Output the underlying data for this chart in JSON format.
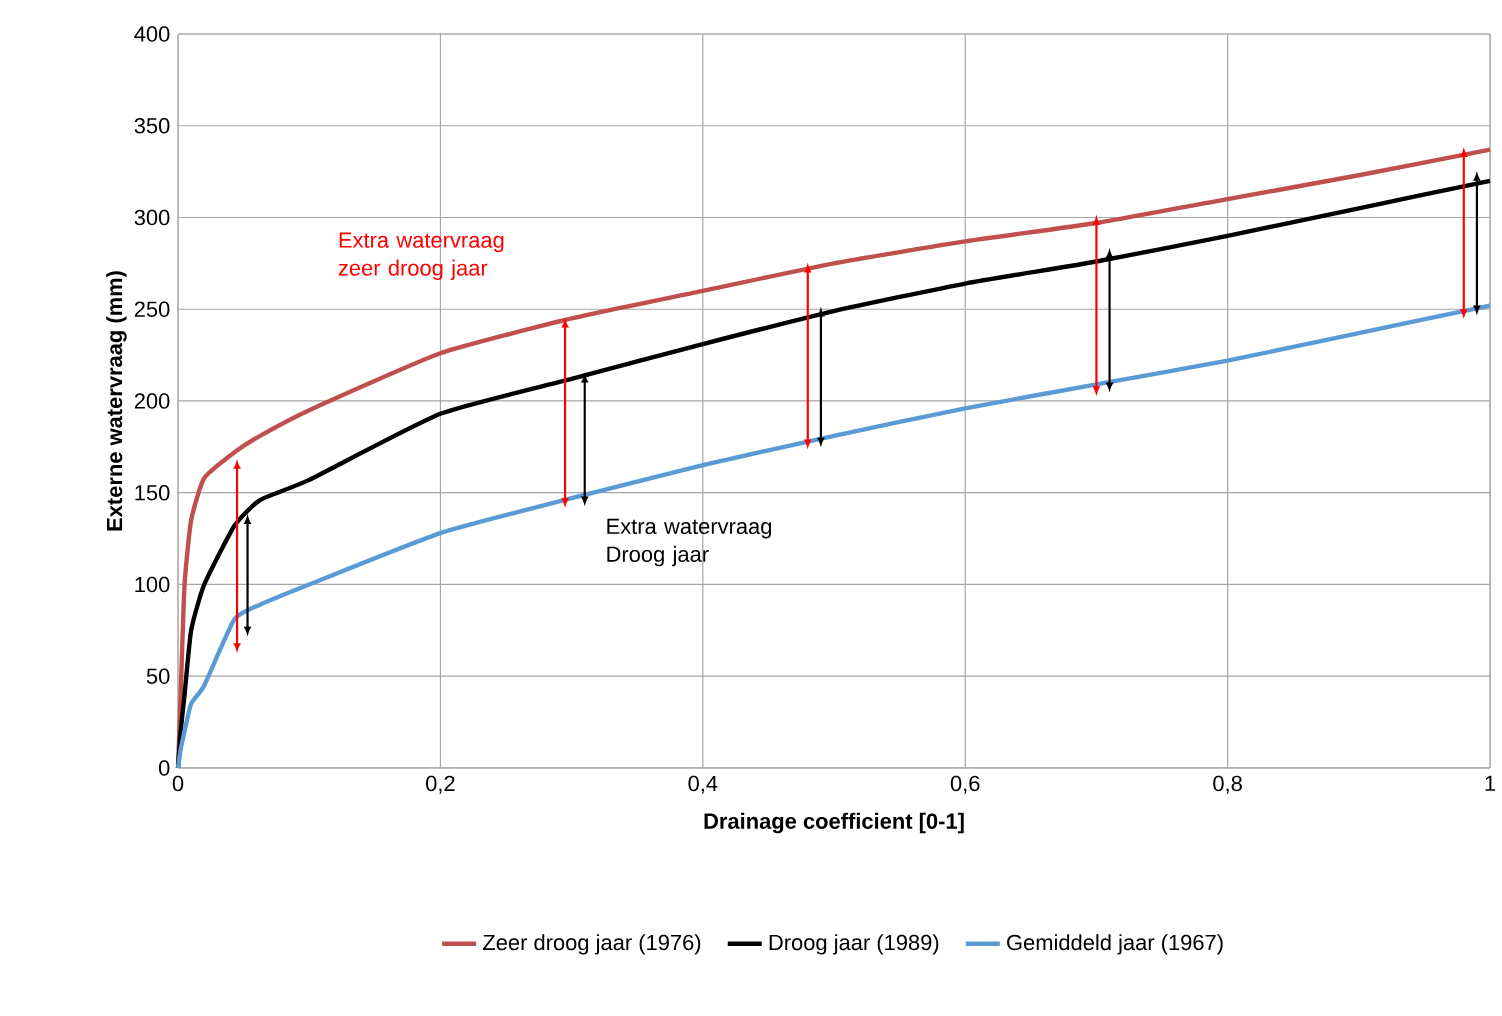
{
  "chart_data": {
    "type": "line",
    "xlabel": "Drainage coefficient [0-1]",
    "ylabel": "Externe watervraag (mm)",
    "x": [
      0,
      0.002,
      0.005,
      0.01,
      0.02,
      0.043,
      0.0625,
      0.1,
      0.2,
      0.3,
      0.4,
      0.5,
      0.6,
      0.7,
      0.8,
      0.9,
      1
    ],
    "xlim": [
      0,
      1
    ],
    "ylim": [
      0,
      400
    ],
    "xticks": [
      0,
      {
        "value": 0.2,
        "label": "0,2"
      },
      {
        "value": 0.4,
        "label": "0,4"
      },
      {
        "value": 0.6,
        "label": "0,6"
      },
      {
        "value": 0.8,
        "label": "0,8"
      },
      1
    ],
    "yticks": [
      0,
      50,
      100,
      150,
      200,
      250,
      300,
      350,
      400
    ],
    "grid": true,
    "legend": "bottom",
    "line_style": "solid",
    "marker": "none",
    "annotations": [
      "Extra watervraag zeer droog jaar",
      "Extra watervraag Droog jaar"
    ],
    "series": [
      {
        "name": "Zeer droog jaar (1976)",
        "color": "#c0504d",
        "values": [
          0,
          40,
          100,
          135,
          158,
          172,
          181,
          195,
          226,
          245,
          260,
          275,
          287,
          297,
          310,
          323,
          337
        ]
      },
      {
        "name": "Droog jaar (1989)",
        "color": "#000000",
        "values": [
          0,
          20,
          40,
          75,
          100,
          132,
          146,
          157,
          193,
          212,
          231,
          249,
          264,
          276,
          290,
          305,
          320
        ]
      },
      {
        "name": "Gemiddeld jaar (1967)",
        "color": "#5b9bd5",
        "values": [
          0,
          10,
          20,
          35,
          45,
          81,
          89,
          100,
          128,
          147,
          165,
          181,
          196,
          209,
          222,
          237,
          252
        ]
      },
      {
        "color": "#ff0000",
        "x": [
          0.045,
          0.045
        ],
        "values": [
          68,
          163
        ]
      },
      {
        "color": "#ff0000",
        "x": [
          0.295,
          0.295
        ],
        "values": [
          147,
          240
        ]
      },
      {
        "color": "#ff0000",
        "x": [
          0.48,
          0.48
        ],
        "values": [
          179,
          270
        ]
      },
      {
        "color": "#ff0000",
        "x": [
          0.7,
          0.7
        ],
        "values": [
          208,
          296
        ]
      },
      {
        "color": "#ff0000",
        "x": [
          0.98,
          0.98
        ],
        "values": [
          250,
          333
        ]
      },
      {
        "color": "#000000",
        "x": [
          0.053,
          0.053
        ],
        "values": [
          77,
          133
        ]
      },
      {
        "color": "#000000",
        "x": [
          0.31,
          0.31
        ],
        "values": [
          148,
          210
        ]
      },
      {
        "color": "#000000",
        "x": [
          0.49,
          0.49
        ],
        "values": [
          180,
          246
        ]
      },
      {
        "color": "#000000",
        "x": [
          0.71,
          0.71
        ],
        "values": [
          210,
          278
        ]
      },
      {
        "color": "#000000",
        "x": [
          0.99,
          0.99
        ],
        "values": [
          252,
          320
        ]
      }
    ]
  }
}
